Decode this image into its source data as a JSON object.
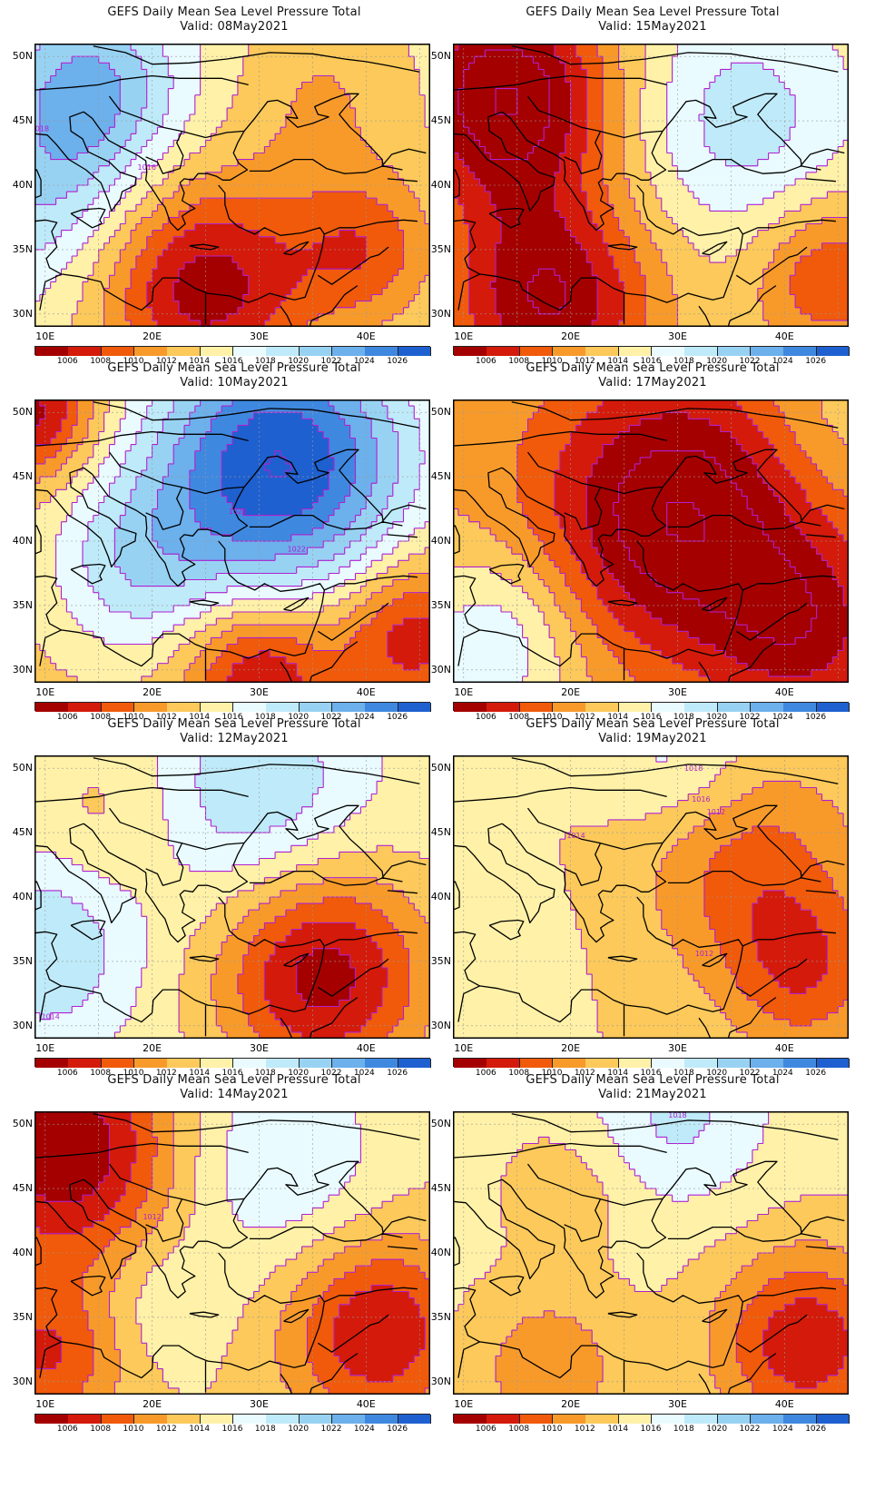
{
  "panels": [
    {
      "title": "GEFS Daily Mean Sea Level Pressure Total",
      "valid": "Valid: 08May2021",
      "field": {
        "base": 1015,
        "blobs": [
          {
            "lon": 25,
            "lat": 32,
            "r": 7,
            "a": -10
          },
          {
            "lon": 40,
            "lat": 35,
            "r": 5,
            "a": -6
          },
          {
            "lon": 14,
            "lat": 47,
            "r": 6,
            "a": 8
          },
          {
            "lon": 9,
            "lat": 38,
            "r": 6,
            "a": 4
          },
          {
            "lon": 36,
            "lat": 47,
            "r": 6,
            "a": -3
          }
        ]
      },
      "contour_labels": [
        {
          "text": "1018",
          "lon": 9.5,
          "lat": 44.2
        },
        {
          "text": "1016",
          "lon": 19.5,
          "lat": 41.2
        }
      ]
    },
    {
      "title": "GEFS Daily Mean Sea Level Pressure Total",
      "valid": "Valid: 15May2021",
      "field": {
        "base": 1014,
        "blobs": [
          {
            "lon": 14,
            "lat": 47,
            "r": 7,
            "a": -12
          },
          {
            "lon": 18,
            "lat": 31,
            "r": 7,
            "a": -10
          },
          {
            "lon": 36,
            "lat": 45,
            "r": 8,
            "a": 5
          },
          {
            "lon": 44,
            "lat": 33,
            "r": 5,
            "a": -6
          }
        ]
      },
      "contour_labels": []
    },
    {
      "title": "GEFS Daily Mean Sea Level Pressure Total",
      "valid": "Valid: 10May2021",
      "field": {
        "base": 1013,
        "blobs": [
          {
            "lon": 32,
            "lat": 46,
            "r": 9,
            "a": 15
          },
          {
            "lon": 18,
            "lat": 38,
            "r": 6,
            "a": 5
          },
          {
            "lon": 30,
            "lat": 30,
            "r": 5,
            "a": -8
          },
          {
            "lon": 44,
            "lat": 33,
            "r": 5,
            "a": -7
          },
          {
            "lon": 9,
            "lat": 50,
            "r": 4,
            "a": -8
          }
        ]
      },
      "contour_labels": [
        {
          "text": "1026",
          "lon": 28,
          "lat": 42.1
        },
        {
          "text": "1022",
          "lon": 33.5,
          "lat": 39.2
        }
      ]
    },
    {
      "title": "GEFS Daily Mean Sea Level Pressure Total",
      "valid": "Valid: 17May2021",
      "field": {
        "base": 1012,
        "blobs": [
          {
            "lon": 30,
            "lat": 42,
            "r": 9,
            "a": -10
          },
          {
            "lon": 42,
            "lat": 33,
            "r": 6,
            "a": -6
          },
          {
            "lon": 13,
            "lat": 32,
            "r": 6,
            "a": 6
          },
          {
            "lon": 44,
            "lat": 49,
            "r": 5,
            "a": 2
          }
        ]
      },
      "contour_labels": []
    },
    {
      "title": "GEFS Daily Mean Sea Level Pressure Total",
      "valid": "Valid: 12May2021",
      "field": {
        "base": 1015,
        "blobs": [
          {
            "lon": 36,
            "lat": 34,
            "r": 7,
            "a": -10
          },
          {
            "lon": 30,
            "lat": 48,
            "r": 7,
            "a": 5
          },
          {
            "lon": 10,
            "lat": 36,
            "r": 6,
            "a": 5
          },
          {
            "lon": 16,
            "lat": 46,
            "r": 5,
            "a": -2
          }
        ]
      },
      "contour_labels": [
        {
          "text": "1014",
          "lon": 10.5,
          "lat": 30.5
        }
      ]
    },
    {
      "title": "GEFS Daily Mean Sea Level Pressure Total",
      "valid": "Valid: 19May2021",
      "field": {
        "base": 1014,
        "blobs": [
          {
            "lon": 37,
            "lat": 42,
            "r": 7,
            "a": -5
          },
          {
            "lon": 42,
            "lat": 34,
            "r": 5,
            "a": -5
          },
          {
            "lon": 30,
            "lat": 51,
            "r": 5,
            "a": 3
          },
          {
            "lon": 14,
            "lat": 36,
            "r": 6,
            "a": 0.5
          }
        ]
      },
      "contour_labels": [
        {
          "text": "1018",
          "lon": 31.5,
          "lat": 49.8
        },
        {
          "text": "1016",
          "lon": 32.2,
          "lat": 47.4
        },
        {
          "text": "1012",
          "lon": 33.6,
          "lat": 46.4
        },
        {
          "text": "1014",
          "lon": 20.5,
          "lat": 44.6
        },
        {
          "text": "1012",
          "lon": 32.5,
          "lat": 35.4
        }
      ]
    },
    {
      "title": "GEFS Daily Mean Sea Level Pressure Total",
      "valid": "Valid: 14May2021",
      "field": {
        "base": 1014,
        "blobs": [
          {
            "lon": 12,
            "lat": 48,
            "r": 7,
            "a": -10
          },
          {
            "lon": 41,
            "lat": 34,
            "r": 6,
            "a": -8
          },
          {
            "lon": 10,
            "lat": 32,
            "r": 5,
            "a": -6
          },
          {
            "lon": 32,
            "lat": 47,
            "r": 7,
            "a": 4
          },
          {
            "lon": 21,
            "lat": 36,
            "r": 4,
            "a": 2
          }
        ]
      },
      "contour_labels": [
        {
          "text": "1012",
          "lon": 20,
          "lat": 42.6
        }
      ]
    },
    {
      "title": "GEFS Daily Mean Sea Level Pressure Total",
      "valid": "Valid: 21May2021",
      "field": {
        "base": 1014.5,
        "blobs": [
          {
            "lon": 42,
            "lat": 33,
            "r": 6,
            "a": -8
          },
          {
            "lon": 30,
            "lat": 51,
            "r": 6,
            "a": 4
          },
          {
            "lon": 18,
            "lat": 31,
            "r": 5,
            "a": -4
          },
          {
            "lon": 20,
            "lat": 45,
            "r": 4,
            "a": -2
          }
        ]
      },
      "contour_labels": [
        {
          "text": "1018",
          "lon": 30,
          "lat": 50.5
        }
      ]
    }
  ],
  "axes": {
    "lon_ticks": [
      "10E",
      "20E",
      "30E",
      "40E"
    ],
    "lat_ticks": [
      "30N",
      "35N",
      "40N",
      "45N",
      "50N"
    ],
    "lon_range": [
      9,
      46
    ],
    "lat_range": [
      29,
      51
    ]
  },
  "colorbar": {
    "labels": [
      "1006",
      "1008",
      "1010",
      "1012",
      "1014",
      "1016",
      "1018",
      "1020",
      "1022",
      "1024",
      "1026"
    ],
    "colors": [
      "#a50000",
      "#d41a0a",
      "#f05a0a",
      "#f89a2a",
      "#fcc95a",
      "#fff1a8",
      "#e9fbff",
      "#bfeaf9",
      "#98d2f3",
      "#6cb0ec",
      "#3f88e0",
      "#1e60d0"
    ]
  },
  "contour_color": "#b020d0",
  "coast_color": "#000000"
}
